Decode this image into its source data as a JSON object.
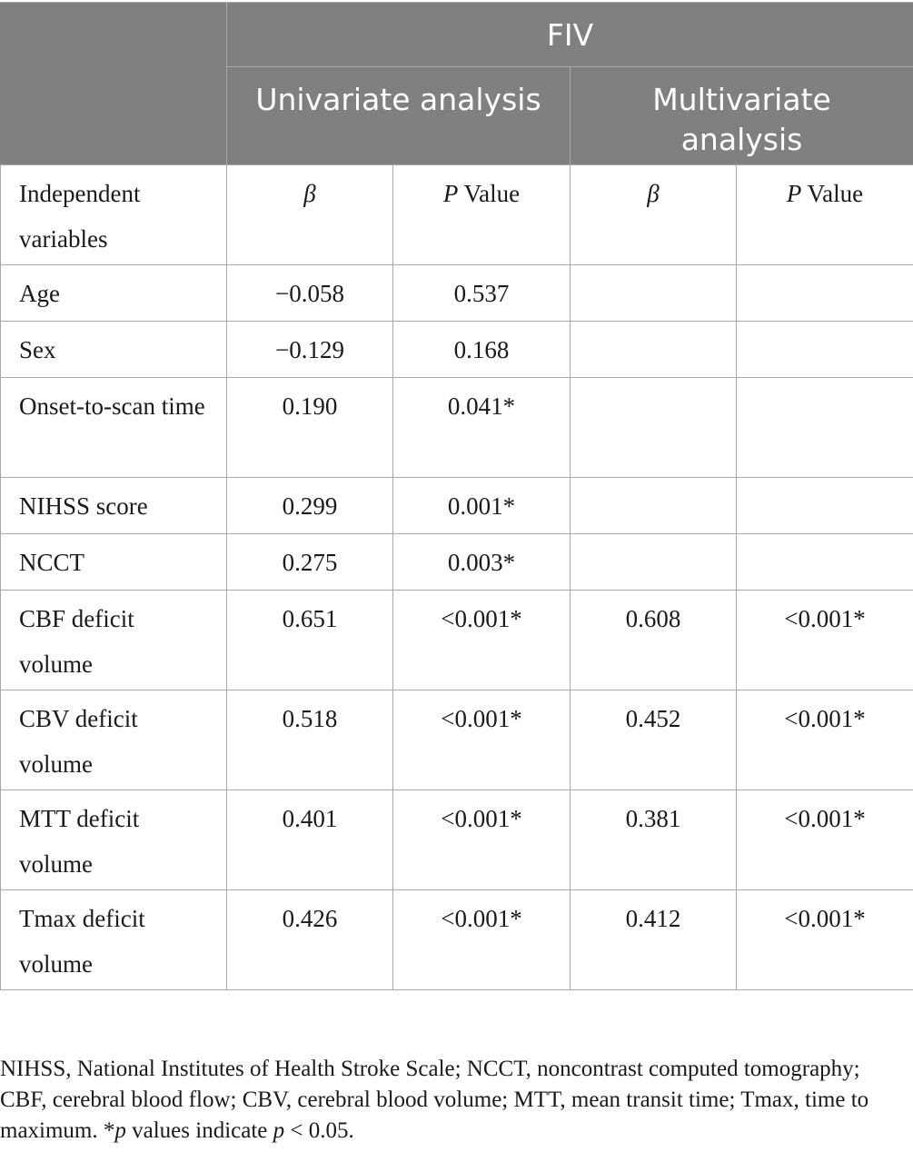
{
  "header": {
    "group": "FIV",
    "univariate": "Univariate analysis",
    "multivariate": "Multivariate analysis"
  },
  "columns": {
    "independent": "Independent variables",
    "beta": "β",
    "p_italic": "P",
    "p_rest": " Value"
  },
  "rows": [
    {
      "name": "Age",
      "u_beta": "−0.058",
      "u_p": "0.537",
      "m_beta": "",
      "m_p": ""
    },
    {
      "name": "Sex",
      "u_beta": "−0.129",
      "u_p": "0.168",
      "m_beta": "",
      "m_p": ""
    },
    {
      "name": "Onset-to-scan time",
      "u_beta": "0.190",
      "u_p": "0.041*",
      "m_beta": "",
      "m_p": ""
    },
    {
      "name": "NIHSS score",
      "u_beta": "0.299",
      "u_p": "0.001*",
      "m_beta": "",
      "m_p": ""
    },
    {
      "name": "NCCT",
      "u_beta": "0.275",
      "u_p": "0.003*",
      "m_beta": "",
      "m_p": ""
    },
    {
      "name": "CBF deficit volume",
      "u_beta": "0.651",
      "u_p": "<0.001*",
      "m_beta": "0.608",
      "m_p": "<0.001*"
    },
    {
      "name": "CBV deficit volume",
      "u_beta": "0.518",
      "u_p": "<0.001*",
      "m_beta": "0.452",
      "m_p": "<0.001*"
    },
    {
      "name": "MTT deficit volume",
      "u_beta": "0.401",
      "u_p": "<0.001*",
      "m_beta": "0.381",
      "m_p": "<0.001*"
    },
    {
      "name": "Tmax deficit volume",
      "u_beta": "0.426",
      "u_p": "<0.001*",
      "m_beta": "0.412",
      "m_p": "<0.001*"
    }
  ],
  "footnote": {
    "main": "NIHSS, National Institutes of Health Stroke Scale; NCCT, noncontrast computed tomography; CBF, cerebral blood flow; CBV, cerebral blood volume; MTT, mean transit time; Tmax, time to maximum. *",
    "p1": "p",
    "mid": " values indicate ",
    "p2": "p",
    "end": " < 0.05."
  }
}
